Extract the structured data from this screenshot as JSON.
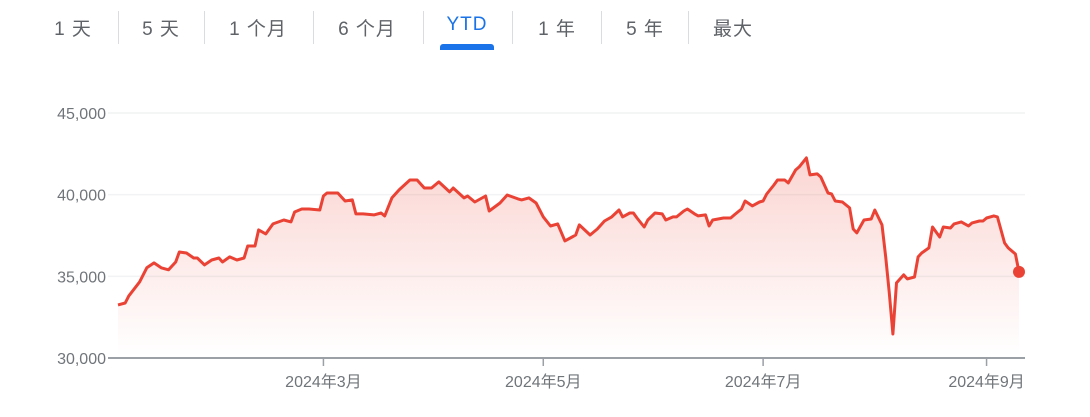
{
  "tabs": [
    {
      "label": "1 天",
      "active": false
    },
    {
      "label": "5 天",
      "active": false
    },
    {
      "label": "1 个月",
      "active": false
    },
    {
      "label": "6 个月",
      "active": false
    },
    {
      "label": "YTD",
      "active": true
    },
    {
      "label": "1 年",
      "active": false
    },
    {
      "label": "5 年",
      "active": false
    },
    {
      "label": "最大",
      "active": false
    }
  ],
  "colors": {
    "line": "#ea4335",
    "active_tab": "#1a73e8",
    "text": "#5f6368"
  },
  "chart_data": {
    "type": "area",
    "title": "",
    "xlabel": "",
    "ylabel": "",
    "ylim": [
      30000,
      45000
    ],
    "yticks": [
      30000,
      35000,
      40000,
      45000
    ],
    "ytick_labels": [
      "30,000",
      "35,000",
      "40,000",
      "45,000"
    ],
    "xlim": [
      "2024-01-04",
      "2024-09-10"
    ],
    "xticks": [
      "2024-03-01",
      "2024-05-01",
      "2024-07-01",
      "2024-09-01"
    ],
    "xtick_labels": [
      "2024年3月",
      "2024年5月",
      "2024年7月",
      "2024年9月"
    ],
    "grid": true,
    "series": [
      {
        "color": "#ea4335",
        "points": [
          [
            "2024-01-04",
            33250
          ],
          [
            "2024-01-06",
            33370
          ],
          [
            "2024-01-07",
            33800
          ],
          [
            "2024-01-10",
            34660
          ],
          [
            "2024-01-12",
            35520
          ],
          [
            "2024-01-14",
            35820
          ],
          [
            "2024-01-16",
            35520
          ],
          [
            "2024-01-18",
            35400
          ],
          [
            "2024-01-20",
            35880
          ],
          [
            "2024-01-21",
            36490
          ],
          [
            "2024-01-23",
            36430
          ],
          [
            "2024-01-25",
            36120
          ],
          [
            "2024-01-26",
            36120
          ],
          [
            "2024-01-28",
            35700
          ],
          [
            "2024-01-30",
            36000
          ],
          [
            "2024-02-01",
            36120
          ],
          [
            "2024-02-02",
            35880
          ],
          [
            "2024-02-04",
            36190
          ],
          [
            "2024-02-06",
            36000
          ],
          [
            "2024-02-08",
            36120
          ],
          [
            "2024-02-09",
            36860
          ],
          [
            "2024-02-11",
            36860
          ],
          [
            "2024-02-12",
            37840
          ],
          [
            "2024-02-14",
            37600
          ],
          [
            "2024-02-16",
            38210
          ],
          [
            "2024-02-19",
            38450
          ],
          [
            "2024-02-21",
            38330
          ],
          [
            "2024-02-22",
            38940
          ],
          [
            "2024-02-24",
            39120
          ],
          [
            "2024-02-26",
            39120
          ],
          [
            "2024-02-29",
            39060
          ],
          [
            "2024-03-01",
            39920
          ],
          [
            "2024-03-02",
            40100
          ],
          [
            "2024-03-05",
            40100
          ],
          [
            "2024-03-07",
            39610
          ],
          [
            "2024-03-09",
            39680
          ],
          [
            "2024-03-10",
            38820
          ],
          [
            "2024-03-12",
            38820
          ],
          [
            "2024-03-15",
            38760
          ],
          [
            "2024-03-17",
            38880
          ],
          [
            "2024-03-18",
            38700
          ],
          [
            "2024-03-20",
            39800
          ],
          [
            "2024-03-22",
            40290
          ],
          [
            "2024-03-25",
            40900
          ],
          [
            "2024-03-27",
            40900
          ],
          [
            "2024-03-29",
            40410
          ],
          [
            "2024-03-31",
            40410
          ],
          [
            "2024-04-02",
            40780
          ],
          [
            "2024-04-05",
            40170
          ],
          [
            "2024-04-06",
            40410
          ],
          [
            "2024-04-09",
            39800
          ],
          [
            "2024-04-10",
            39920
          ],
          [
            "2024-04-12",
            39550
          ],
          [
            "2024-04-15",
            39920
          ],
          [
            "2024-04-16",
            39000
          ],
          [
            "2024-04-19",
            39490
          ],
          [
            "2024-04-21",
            39980
          ],
          [
            "2024-04-24",
            39740
          ],
          [
            "2024-04-25",
            39680
          ],
          [
            "2024-04-27",
            39800
          ],
          [
            "2024-04-29",
            39490
          ],
          [
            "2024-05-01",
            38640
          ],
          [
            "2024-05-03",
            38080
          ],
          [
            "2024-05-05",
            38210
          ],
          [
            "2024-05-07",
            37170
          ],
          [
            "2024-05-09",
            37410
          ],
          [
            "2024-05-10",
            37530
          ],
          [
            "2024-05-11",
            38150
          ],
          [
            "2024-05-14",
            37530
          ],
          [
            "2024-05-16",
            37900
          ],
          [
            "2024-05-18",
            38390
          ],
          [
            "2024-05-20",
            38640
          ],
          [
            "2024-05-22",
            39060
          ],
          [
            "2024-05-23",
            38640
          ],
          [
            "2024-05-25",
            38880
          ],
          [
            "2024-05-26",
            38880
          ],
          [
            "2024-05-27",
            38570
          ],
          [
            "2024-05-29",
            38020
          ],
          [
            "2024-05-30",
            38450
          ],
          [
            "2024-06-01",
            38880
          ],
          [
            "2024-06-03",
            38820
          ],
          [
            "2024-06-04",
            38450
          ],
          [
            "2024-06-06",
            38640
          ],
          [
            "2024-06-07",
            38640
          ],
          [
            "2024-06-09",
            39000
          ],
          [
            "2024-06-10",
            39120
          ],
          [
            "2024-06-12",
            38820
          ],
          [
            "2024-06-13",
            38700
          ],
          [
            "2024-06-15",
            38760
          ],
          [
            "2024-06-16",
            38080
          ],
          [
            "2024-06-17",
            38450
          ],
          [
            "2024-06-20",
            38570
          ],
          [
            "2024-06-22",
            38570
          ],
          [
            "2024-06-23",
            38760
          ],
          [
            "2024-06-25",
            39120
          ],
          [
            "2024-06-26",
            39610
          ],
          [
            "2024-06-28",
            39310
          ],
          [
            "2024-06-30",
            39550
          ],
          [
            "2024-07-01",
            39610
          ],
          [
            "2024-07-02",
            40040
          ],
          [
            "2024-07-04",
            40590
          ],
          [
            "2024-07-05",
            40900
          ],
          [
            "2024-07-07",
            40900
          ],
          [
            "2024-07-08",
            40720
          ],
          [
            "2024-07-10",
            41510
          ],
          [
            "2024-07-11",
            41700
          ],
          [
            "2024-07-13",
            42250
          ],
          [
            "2024-07-14",
            41210
          ],
          [
            "2024-07-16",
            41270
          ],
          [
            "2024-07-17",
            41080
          ],
          [
            "2024-07-19",
            40100
          ],
          [
            "2024-07-20",
            40040
          ],
          [
            "2024-07-21",
            39610
          ],
          [
            "2024-07-23",
            39550
          ],
          [
            "2024-07-25",
            39190
          ],
          [
            "2024-07-26",
            37900
          ],
          [
            "2024-07-27",
            37660
          ],
          [
            "2024-07-29",
            38450
          ],
          [
            "2024-07-31",
            38510
          ],
          [
            "2024-08-01",
            39060
          ],
          [
            "2024-08-03",
            38150
          ],
          [
            "2024-08-04",
            36190
          ],
          [
            "2024-08-05",
            33980
          ],
          [
            "2024-08-06",
            31470
          ],
          [
            "2024-08-07",
            34600
          ],
          [
            "2024-08-09",
            35090
          ],
          [
            "2024-08-10",
            34840
          ],
          [
            "2024-08-12",
            34960
          ],
          [
            "2024-08-13",
            36190
          ],
          [
            "2024-08-14",
            36430
          ],
          [
            "2024-08-16",
            36740
          ],
          [
            "2024-08-17",
            38020
          ],
          [
            "2024-08-19",
            37410
          ],
          [
            "2024-08-20",
            38020
          ],
          [
            "2024-08-22",
            37960
          ],
          [
            "2024-08-23",
            38210
          ],
          [
            "2024-08-25",
            38330
          ],
          [
            "2024-08-27",
            38080
          ],
          [
            "2024-08-28",
            38270
          ],
          [
            "2024-08-30",
            38390
          ],
          [
            "2024-08-31",
            38390
          ],
          [
            "2024-09-01",
            38570
          ],
          [
            "2024-09-03",
            38700
          ],
          [
            "2024-09-04",
            38640
          ],
          [
            "2024-09-06",
            37040
          ],
          [
            "2024-09-07",
            36740
          ],
          [
            "2024-09-09",
            36370
          ],
          [
            "2024-09-10",
            35270
          ]
        ]
      }
    ]
  }
}
